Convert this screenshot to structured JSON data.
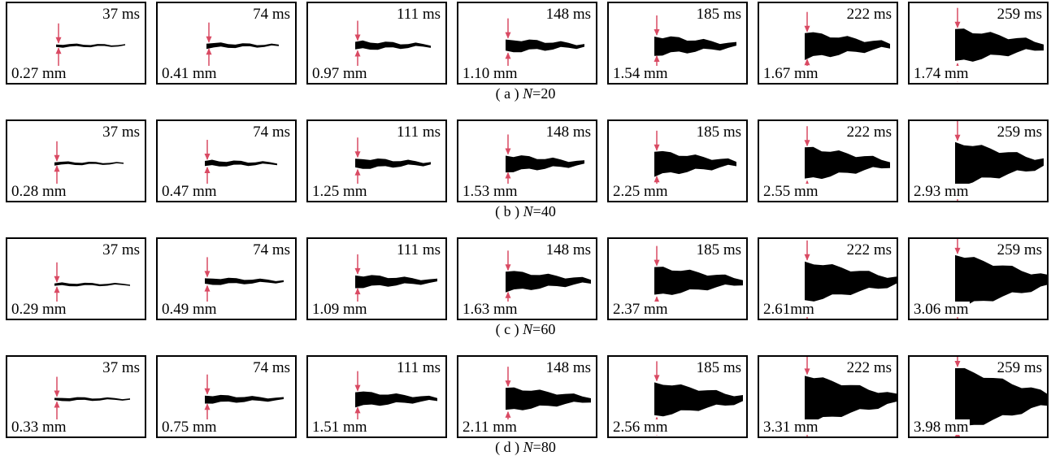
{
  "colors": {
    "arrow": "#d94a63",
    "crack": "#000000"
  },
  "rows": [
    {
      "caption_prefix": "( a ) ",
      "caption_var": "N",
      "caption_suffix": "=20",
      "panels": [
        {
          "time": "37 ms",
          "width": "0.27 mm"
        },
        {
          "time": "74 ms",
          "width": "0.41 mm"
        },
        {
          "time": "111 ms",
          "width": "0.97 mm"
        },
        {
          "time": "148 ms",
          "width": "1.10 mm"
        },
        {
          "time": "185 ms",
          "width": "1.54 mm"
        },
        {
          "time": "222 ms",
          "width": "1.67 mm"
        },
        {
          "time": "259 ms",
          "width": "1.74 mm"
        }
      ]
    },
    {
      "caption_prefix": "( b ) ",
      "caption_var": "N",
      "caption_suffix": "=40",
      "panels": [
        {
          "time": "37 ms",
          "width": "0.28 mm"
        },
        {
          "time": "74 ms",
          "width": "0.47 mm"
        },
        {
          "time": "111 ms",
          "width": "1.25 mm"
        },
        {
          "time": "148 ms",
          "width": "1.53 mm"
        },
        {
          "time": "185 ms",
          "width": "2.25 mm"
        },
        {
          "time": "222 ms",
          "width": "2.55 mm"
        },
        {
          "time": "259 ms",
          "width": "2.93 mm"
        }
      ]
    },
    {
      "caption_prefix": "( c ) ",
      "caption_var": "N",
      "caption_suffix": "=60",
      "panels": [
        {
          "time": "37 ms",
          "width": "0.29 mm"
        },
        {
          "time": "74 ms",
          "width": "0.49 mm"
        },
        {
          "time": "111 ms",
          "width": "1.09 mm"
        },
        {
          "time": "148 ms",
          "width": "1.63 mm"
        },
        {
          "time": "185 ms",
          "width": "2.37 mm"
        },
        {
          "time": "222 ms",
          "width": "2.61mm"
        },
        {
          "time": "259 ms",
          "width": "3.06 mm"
        }
      ]
    },
    {
      "caption_prefix": "( d ) ",
      "caption_var": "N",
      "caption_suffix": "=80",
      "panels": [
        {
          "time": "37 ms",
          "width": "0.33 mm"
        },
        {
          "time": "74 ms",
          "width": "0.75 mm"
        },
        {
          "time": "111 ms",
          "width": "1.51 mm"
        },
        {
          "time": "148 ms",
          "width": "2.11 mm"
        },
        {
          "time": "185 ms",
          "width": "2.56 mm"
        },
        {
          "time": "222 ms",
          "width": "3.31 mm"
        },
        {
          "time": "259 ms",
          "width": "3.98 mm"
        }
      ]
    }
  ]
}
